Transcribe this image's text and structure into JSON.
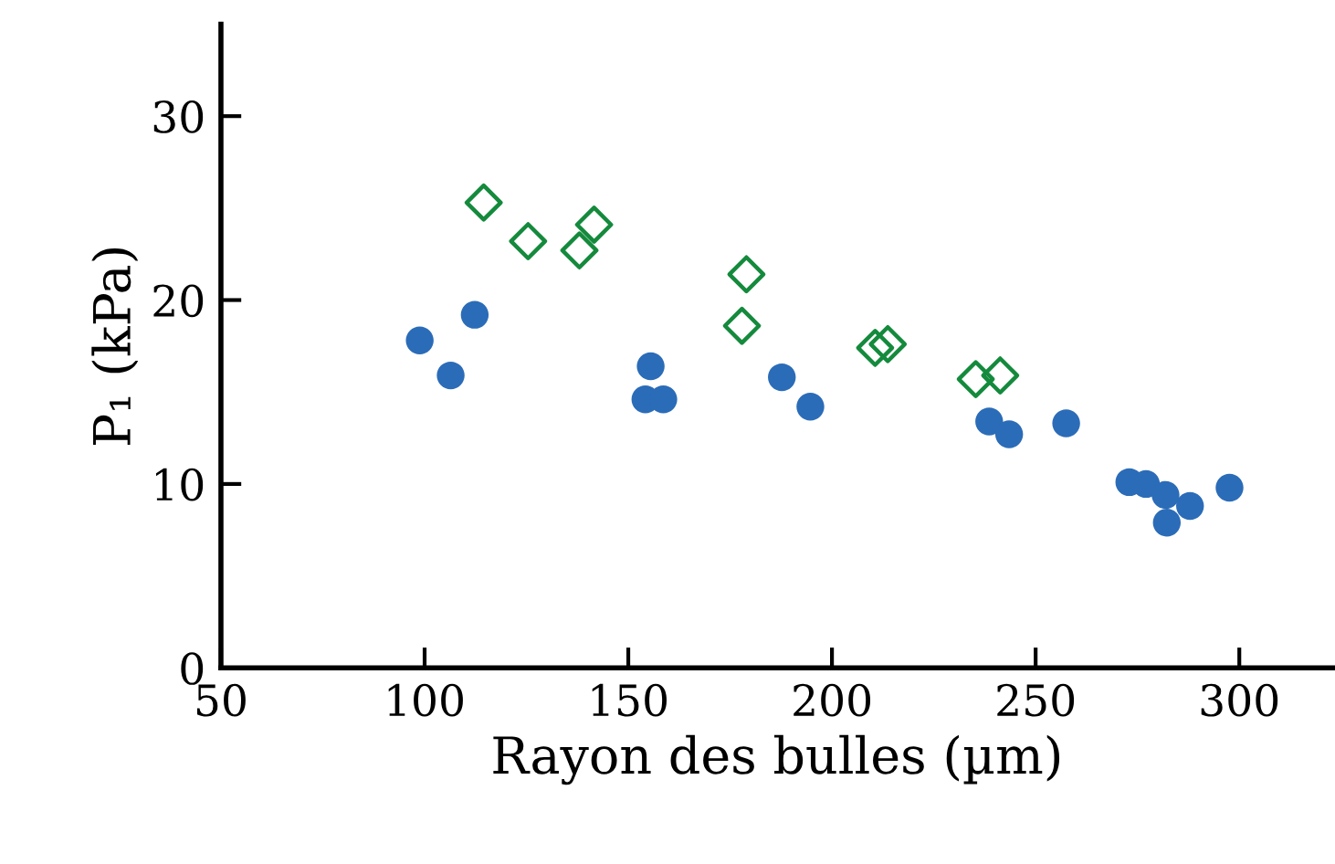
{
  "chart_data": {
    "type": "scatter",
    "xlabel": "Rayon des bulles (µm)",
    "ylabel": "P₁ (kPa)",
    "xlim": [
      50,
      323
    ],
    "ylim": [
      0,
      35
    ],
    "xticks": [
      50,
      100,
      150,
      200,
      250,
      300
    ],
    "yticks": [
      0,
      10,
      20,
      30
    ],
    "grid": false,
    "legend": false,
    "series": [
      {
        "color": "#2b6cb8",
        "marker": "circle",
        "x": [
          98.8,
          106.4,
          112.3,
          155.5,
          154.2,
          158.6,
          187.7,
          194.7,
          238.6,
          243.5,
          257.5,
          273,
          277.1,
          281.9,
          282.2,
          287.9,
          297.6
        ],
        "values": [
          17.8,
          15.9,
          19.2,
          16.4,
          14.6,
          14.6,
          15.8,
          14.2,
          13.4,
          12.7,
          13.3,
          10.1,
          10.0,
          9.4,
          7.9,
          8.8,
          9.8
        ]
      },
      {
        "color": "#148a3c",
        "marker": "diamond",
        "x": [
          114.5,
          125.4,
          138,
          141.6,
          179.0,
          177.9,
          210.6,
          213.7,
          235.3,
          241.3
        ],
        "values": [
          25.3,
          23.2,
          22.7,
          24.1,
          21.4,
          18.6,
          17.4,
          17.6,
          15.7,
          15.9
        ]
      }
    ]
  }
}
